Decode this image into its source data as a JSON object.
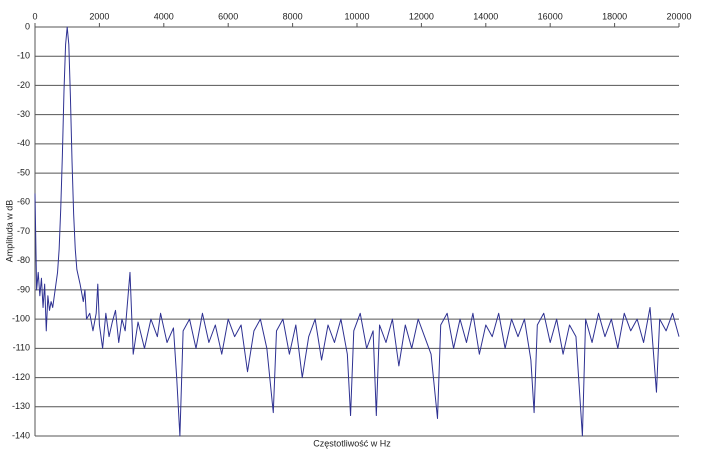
{
  "chart_data": {
    "type": "line",
    "x_label": "Częstotliwość w Hz",
    "y_label": "Amplituda w dB",
    "xlim": [
      0,
      20000
    ],
    "xticks": [
      0,
      2000,
      4000,
      6000,
      8000,
      10000,
      12000,
      14000,
      16000,
      18000,
      20000
    ],
    "ylim": [
      -140,
      0
    ],
    "yticks": [
      0,
      -10,
      -20,
      -30,
      -40,
      -50,
      -60,
      -70,
      -80,
      -90,
      -100,
      -110,
      -120,
      -130,
      -140
    ],
    "grid": true,
    "x": [
      0,
      50,
      100,
      150,
      200,
      250,
      300,
      350,
      400,
      450,
      500,
      550,
      600,
      650,
      700,
      750,
      800,
      850,
      900,
      950,
      1000,
      1050,
      1100,
      1150,
      1200,
      1250,
      1300,
      1400,
      1500,
      1550,
      1600,
      1700,
      1800,
      1900,
      1950,
      2000,
      2100,
      2200,
      2300,
      2400,
      2500,
      2600,
      2700,
      2800,
      2950,
      3050,
      3200,
      3400,
      3600,
      3800,
      3900,
      4100,
      4300,
      4400,
      4500,
      4600,
      4800,
      5000,
      5200,
      5400,
      5600,
      5800,
      6000,
      6200,
      6400,
      6600,
      6800,
      7000,
      7200,
      7400,
      7500,
      7700,
      7900,
      8100,
      8300,
      8500,
      8700,
      8900,
      9100,
      9300,
      9500,
      9700,
      9800,
      9900,
      10100,
      10300,
      10500,
      10600,
      10700,
      10900,
      11100,
      11300,
      11500,
      11700,
      11900,
      12100,
      12300,
      12500,
      12600,
      12800,
      13000,
      13200,
      13400,
      13600,
      13800,
      14000,
      14200,
      14400,
      14600,
      14800,
      15000,
      15200,
      15400,
      15500,
      15600,
      15800,
      16000,
      16200,
      16400,
      16600,
      16800,
      17000,
      17100,
      17300,
      17500,
      17700,
      17900,
      18100,
      18300,
      18500,
      18700,
      18900,
      19100,
      19300,
      19400,
      19600,
      19800,
      20000
    ],
    "series": [
      {
        "name": "Amplituda",
        "color": "#2e3192",
        "values": [
          -57,
          -90,
          -84,
          -92,
          -86,
          -96,
          -88,
          -104,
          -92,
          -97,
          -94,
          -96,
          -92,
          -88,
          -84,
          -76,
          -62,
          -44,
          -22,
          -6,
          0,
          -6,
          -24,
          -46,
          -64,
          -76,
          -83,
          -88,
          -94,
          -90,
          -100,
          -98,
          -104,
          -98,
          -88,
          -102,
          -110,
          -98,
          -106,
          -101,
          -97,
          -108,
          -100,
          -104,
          -84,
          -112,
          -101,
          -110,
          -100,
          -106,
          -98,
          -108,
          -103,
          -120,
          -140,
          -104,
          -100,
          -110,
          -98,
          -108,
          -102,
          -112,
          -100,
          -106,
          -102,
          -118,
          -104,
          -100,
          -110,
          -132,
          -104,
          -100,
          -112,
          -102,
          -120,
          -106,
          -100,
          -114,
          -102,
          -108,
          -100,
          -112,
          -133,
          -104,
          -98,
          -110,
          -104,
          -133,
          -102,
          -108,
          -100,
          -116,
          -102,
          -110,
          -100,
          -106,
          -112,
          -134,
          -102,
          -98,
          -110,
          -100,
          -108,
          -98,
          -112,
          -102,
          -106,
          -98,
          -110,
          -100,
          -106,
          -100,
          -114,
          -132,
          -102,
          -98,
          -108,
          -100,
          -112,
          -102,
          -106,
          -140,
          -100,
          -108,
          -98,
          -106,
          -100,
          -110,
          -98,
          -104,
          -100,
          -108,
          -96,
          -125,
          -100,
          -104,
          -98,
          -106
        ]
      }
    ]
  }
}
